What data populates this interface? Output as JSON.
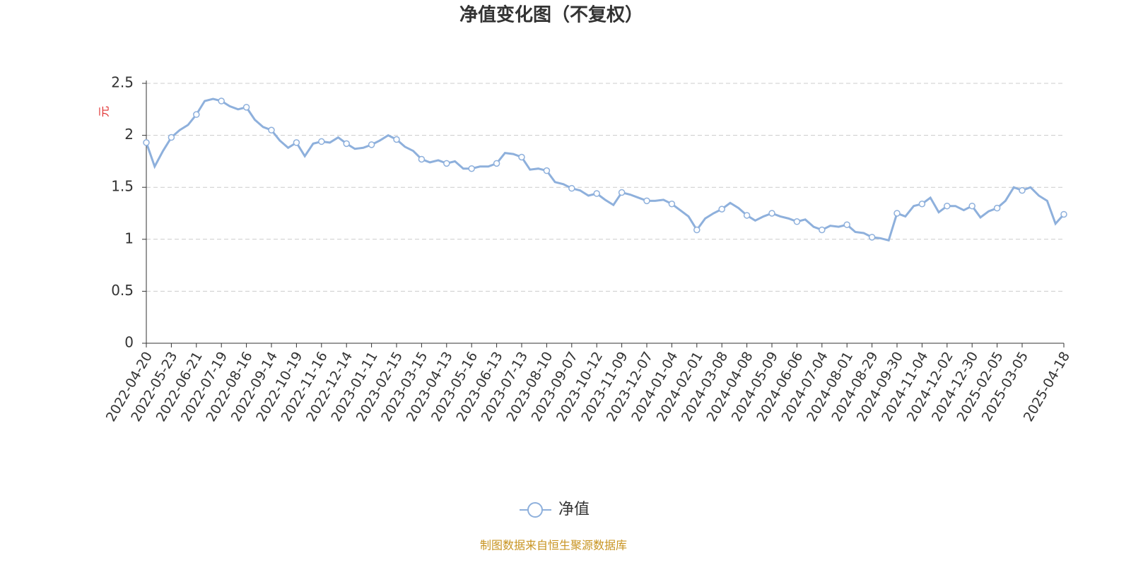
{
  "chart_data": {
    "type": "line",
    "title": "净值变化图（不复权）",
    "y_label": "元",
    "source": "制图数据来自恒生聚源数据库",
    "categories": [
      "2022-04-20",
      null,
      null,
      "2022-05-23",
      null,
      null,
      "2022-06-21",
      null,
      null,
      "2022-07-19",
      null,
      null,
      "2022-08-16",
      null,
      null,
      "2022-09-14",
      null,
      null,
      "2022-10-19",
      null,
      null,
      "2022-11-16",
      null,
      null,
      "2022-12-14",
      null,
      null,
      "2023-01-11",
      null,
      null,
      "2023-02-15",
      null,
      null,
      "2023-03-15",
      null,
      null,
      "2023-04-13",
      null,
      null,
      "2023-05-16",
      null,
      null,
      "2023-06-13",
      null,
      null,
      "2023-07-13",
      null,
      null,
      "2023-08-10",
      null,
      null,
      "2023-09-07",
      null,
      null,
      "2023-10-12",
      null,
      null,
      "2023-11-09",
      null,
      null,
      "2023-12-07",
      null,
      null,
      "2024-01-04",
      null,
      null,
      "2024-02-01",
      null,
      null,
      "2024-03-08",
      null,
      null,
      "2024-04-08",
      null,
      null,
      "2024-05-09",
      null,
      null,
      "2024-06-06",
      null,
      null,
      "2024-07-04",
      null,
      null,
      "2024-08-01",
      null,
      null,
      "2024-08-29",
      null,
      null,
      "2024-09-30",
      null,
      null,
      "2024-11-04",
      null,
      null,
      "2024-12-02",
      null,
      null,
      "2024-12-30",
      null,
      null,
      "2025-02-05",
      null,
      null,
      "2025-03-05",
      null,
      null,
      null,
      null,
      "2025-04-18"
    ],
    "series": [
      {
        "name": "净值",
        "color": "#8eb0dc",
        "values": [
          1.93,
          1.7,
          1.85,
          1.98,
          2.05,
          2.1,
          2.2,
          2.33,
          2.35,
          2.33,
          2.28,
          2.25,
          2.27,
          2.15,
          2.08,
          2.05,
          1.95,
          1.88,
          1.93,
          1.8,
          1.92,
          1.94,
          1.93,
          1.98,
          1.92,
          1.87,
          1.88,
          1.91,
          1.95,
          2.0,
          1.96,
          1.89,
          1.85,
          1.77,
          1.74,
          1.76,
          1.73,
          1.75,
          1.68,
          1.68,
          1.7,
          1.7,
          1.73,
          1.83,
          1.82,
          1.79,
          1.67,
          1.68,
          1.66,
          1.55,
          1.53,
          1.49,
          1.47,
          1.42,
          1.44,
          1.38,
          1.33,
          1.45,
          1.43,
          1.4,
          1.37,
          1.37,
          1.38,
          1.34,
          1.28,
          1.22,
          1.09,
          1.2,
          1.25,
          1.29,
          1.35,
          1.3,
          1.23,
          1.18,
          1.22,
          1.25,
          1.22,
          1.2,
          1.17,
          1.19,
          1.12,
          1.09,
          1.13,
          1.12,
          1.14,
          1.07,
          1.06,
          1.02,
          1.01,
          0.99,
          1.25,
          1.22,
          1.32,
          1.34,
          1.4,
          1.26,
          1.32,
          1.32,
          1.28,
          1.32,
          1.21,
          1.27,
          1.3,
          1.37,
          1.5,
          1.47,
          1.5,
          1.42,
          1.37,
          1.15,
          1.24
        ]
      }
    ],
    "ylim": [
      0,
      2.5
    ],
    "yticks": [
      0,
      0.5,
      1,
      1.5,
      2,
      2.5
    ],
    "grid": true,
    "legend": "bottom"
  }
}
